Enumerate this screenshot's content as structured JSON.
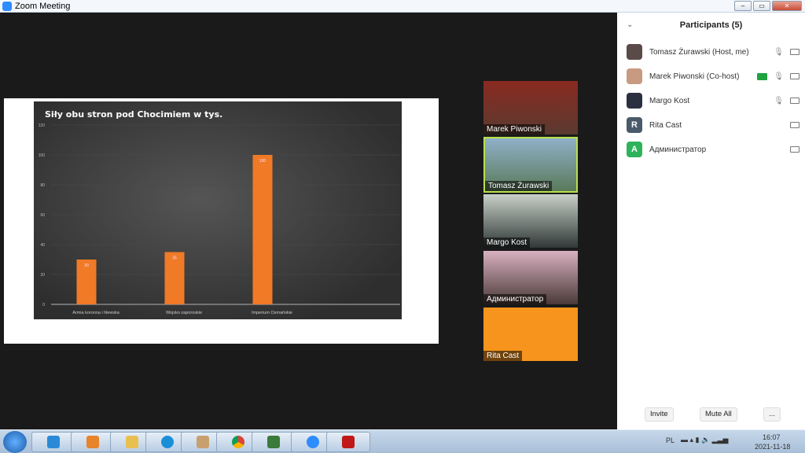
{
  "window": {
    "title": "Zoom Meeting"
  },
  "chart_data": {
    "type": "bar",
    "title": "Siły obu stron pod Chocimiem w tys.",
    "categories": [
      "Armia koronna i litewska",
      "Wojsko zaporoskie",
      "Imperium Osmańskie"
    ],
    "values": [
      30,
      35,
      100
    ],
    "data_labels": [
      "30",
      "35",
      "100"
    ],
    "ylim": [
      0,
      120
    ],
    "yticks": [
      0,
      20,
      40,
      60,
      80,
      100,
      120
    ],
    "grid": true,
    "bar_color": "#f07a26",
    "xlabel": "",
    "ylabel": ""
  },
  "videos": [
    {
      "name": "Marek Piwonski",
      "active": false
    },
    {
      "name": "Tomasz Żurawski",
      "active": true
    },
    {
      "name": "Margo Kost",
      "active": false
    },
    {
      "name": "Администратор",
      "active": false
    },
    {
      "name": "Rita Cast",
      "active": false,
      "color": "#f7941d"
    }
  ],
  "participants": {
    "title": "Participants (5)",
    "items": [
      {
        "name": "Tomasz Żurawski (Host, me)",
        "initial": "",
        "mic": true,
        "share": false
      },
      {
        "name": "Marek Piwonski (Co-host)",
        "initial": "",
        "mic": true,
        "share": true
      },
      {
        "name": "Margo Kost",
        "initial": "",
        "mic": true,
        "share": false
      },
      {
        "name": "Rita Cast",
        "initial": "R",
        "mic": false,
        "share": false,
        "color": "#4a5a6a"
      },
      {
        "name": "Администратор",
        "initial": "A",
        "mic": false,
        "share": false,
        "color": "#2eb35a"
      }
    ],
    "invite": "Invite",
    "mute_all": "Mute All",
    "more": "..."
  },
  "taskbar": {
    "lang": "PL",
    "time": "16:07",
    "date": "2021-11-18"
  }
}
